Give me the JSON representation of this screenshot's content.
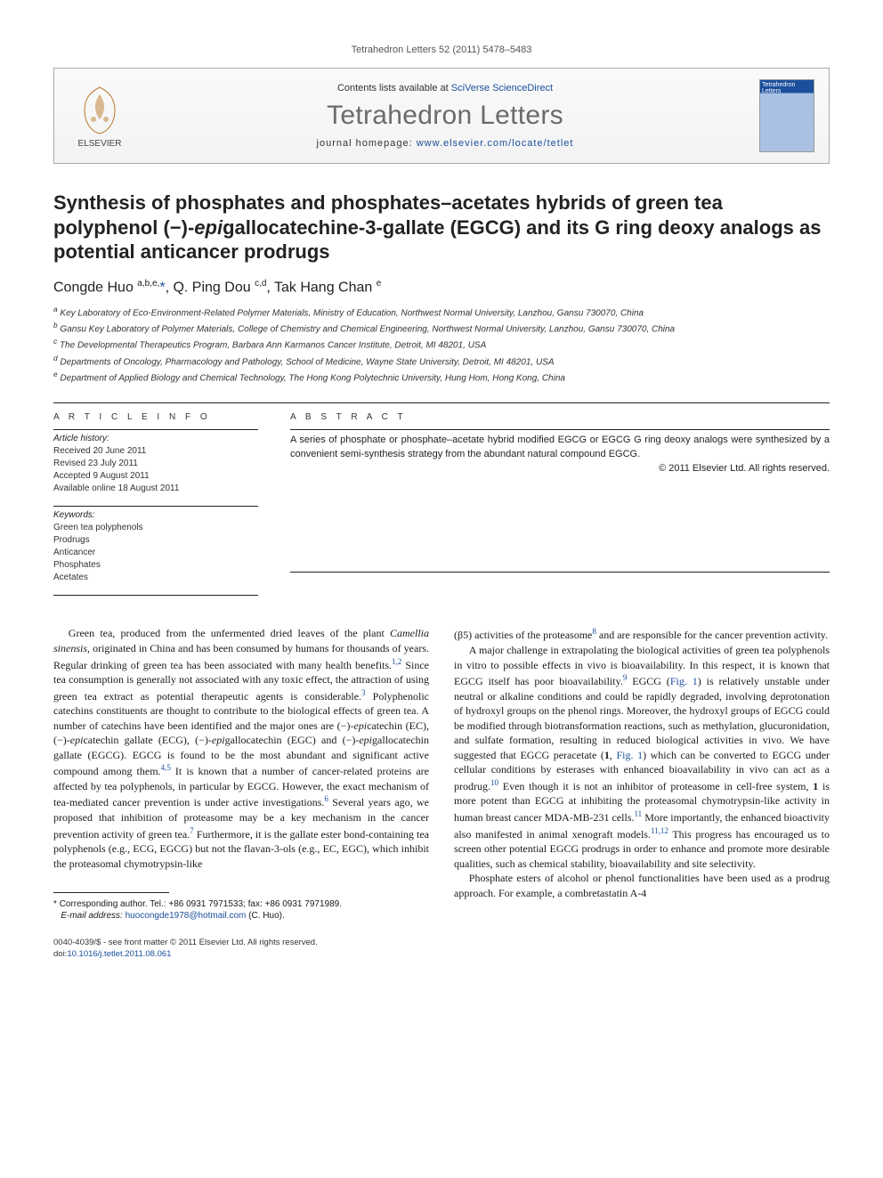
{
  "running_header": "Tetrahedron Letters 52 (2011) 5478–5483",
  "header": {
    "contents_prefix": "Contents lists available at ",
    "contents_link": "SciVerse ScienceDirect",
    "journal_name": "Tetrahedron Letters",
    "homepage_prefix": "journal homepage: ",
    "homepage_link": "www.elsevier.com/locate/tetlet",
    "elsevier_brand": "ELSEVIER",
    "cover_label": "Tetrahedron Letters"
  },
  "title": "Synthesis of phosphates and phosphates–acetates hybrids of green tea polyphenol (−)-epigallocatechine-3-gallate (EGCG) and its G ring deoxy analogs as potential anticancer prodrugs",
  "authors_html": "Congde Huo <sup>a,b,e,</sup><a href=\"#\">*</a>, Q. Ping Dou <sup>c,d</sup>, Tak Hang Chan <sup>e</sup>",
  "affiliations": [
    "a Key Laboratory of Eco-Environment-Related Polymer Materials, Ministry of Education, Northwest Normal University, Lanzhou, Gansu 730070, China",
    "b Gansu Key Laboratory of Polymer Materials, College of Chemistry and Chemical Engineering, Northwest Normal University, Lanzhou, Gansu 730070, China",
    "c The Developmental Therapeutics Program, Barbara Ann Karmanos Cancer Institute, Detroit, MI 48201, USA",
    "d Departments of Oncology, Pharmacology and Pathology, School of Medicine, Wayne State University, Detroit, MI 48201, USA",
    "e Department of Applied Biology and Chemical Technology, The Hong Kong Polytechnic University, Hung Hom, Hong Kong, China"
  ],
  "article_info_label": "A R T I C L E   I N F O",
  "abstract_label": "A B S T R A C T",
  "history_heading": "Article history:",
  "history": [
    "Received 20 June 2011",
    "Revised 23 July 2011",
    "Accepted 9 August 2011",
    "Available online 18 August 2011"
  ],
  "keywords_heading": "Keywords:",
  "keywords": [
    "Green tea polyphenols",
    "Prodrugs",
    "Anticancer",
    "Phosphates",
    "Acetates"
  ],
  "abstract": "A series of phosphate or phosphate–acetate hybrid modified EGCG or EGCG G ring deoxy analogs were synthesized by a convenient semi-synthesis strategy from the abundant natural compound EGCG.",
  "copyright": "© 2011 Elsevier Ltd. All rights reserved.",
  "body": {
    "col1": [
      "Green tea, produced from the unfermented dried leaves of the plant <i>Camellia sinensis</i>, originated in China and has been consumed by humans for thousands of years. Regular drinking of green tea has been associated with many health benefits.<span class=\"sup\">1,2</span> Since tea consumption is generally not associated with any toxic effect, the attraction of using green tea extract as potential therapeutic agents is considerable.<span class=\"sup\">3</span> Polyphenolic catechins constituents are thought to contribute to the biological effects of green tea. A number of catechins have been identified and the major ones are (−)-<i>epi</i>catechin (EC), (−)-<i>epi</i>catechin gallate (ECG), (−)-<i>epi</i>gallocatechin (EGC) and (−)-<i>epi</i>gallocatechin gallate (EGCG). EGCG is found to be the most abundant and significant active compound among them.<span class=\"sup\">4,5</span> It is known that a number of cancer-related proteins are affected by tea polyphenols, in particular by EGCG. However, the exact mechanism of tea-mediated cancer prevention is under active investigations.<span class=\"sup\">6</span> Several years ago, we proposed that inhibition of proteasome may be a key mechanism in the cancer prevention activity of green tea.<span class=\"sup\">7</span> Furthermore, it is the gallate ester bond-containing tea polyphenols (e.g., ECG, EGCG) but not the flavan-3-ols (e.g., EC, EGC), which inhibit the proteasomal chymotrypsin-like"
    ],
    "col2": [
      "(β5) activities of the proteasome<span class=\"sup\">8</span> and are responsible for the cancer prevention activity.",
      "A major challenge in extrapolating the biological activities of green tea polyphenols in vitro to possible effects in vivo is bioavailability. In this respect, it is known that EGCG itself has poor bioavailability.<span class=\"sup\">9</span> EGCG (<span class=\"ref\">Fig. 1</span>) is relatively unstable under neutral or alkaline conditions and could be rapidly degraded, involving deprotonation of hydroxyl groups on the phenol rings. Moreover, the hydroxyl groups of EGCG could be modified through biotransformation reactions, such as methylation, glucuronidation, and sulfate formation, resulting in reduced biological activities in vivo. We have suggested that EGCG peracetate (<b>1</b>, <span class=\"ref\">Fig. 1</span>) which can be converted to EGCG under cellular conditions by esterases with enhanced bioavailability in vivo can act as a prodrug.<span class=\"sup\">10</span> Even though it is not an inhibitor of proteasome in cell-free system, <b>1</b> is more potent than EGCG at inhibiting the proteasomal chymotrypsin-like activity in human breast cancer MDA-MB-231 cells.<span class=\"sup\">11</span> More importantly, the enhanced bioactivity also manifested in animal xenograft models.<span class=\"sup\">11,12</span> This progress has encouraged us to screen other potential EGCG prodrugs in order to enhance and promote more desirable qualities, such as chemical stability, bioavailability and site selectivity.",
      "Phosphate esters of alcohol or phenol functionalities have been used as a prodrug approach. For example, a combretastatin A-4"
    ]
  },
  "footnote": {
    "marker": "*",
    "label": "Corresponding author. Tel.: +86 0931 7971533; fax: +86 0931 7971989.",
    "email_label": "E-mail address:",
    "email": "huocongde1978@hotmail.com",
    "email_suffix": "(C. Huo)."
  },
  "bottom": {
    "line1": "0040-4039/$ - see front matter © 2011 Elsevier Ltd. All rights reserved.",
    "doi_label": "doi:",
    "doi": "10.1016/j.tetlet.2011.08.061"
  },
  "colors": {
    "link": "#1a4f9c",
    "text": "#1a1a1a",
    "muted": "#555",
    "border": "#aaa",
    "bg": "#ffffff"
  },
  "typography": {
    "title_fontsize": 22,
    "author_fontsize": 16,
    "affil_fontsize": 10,
    "body_fontsize": 12,
    "journal_fontsize": 30
  }
}
